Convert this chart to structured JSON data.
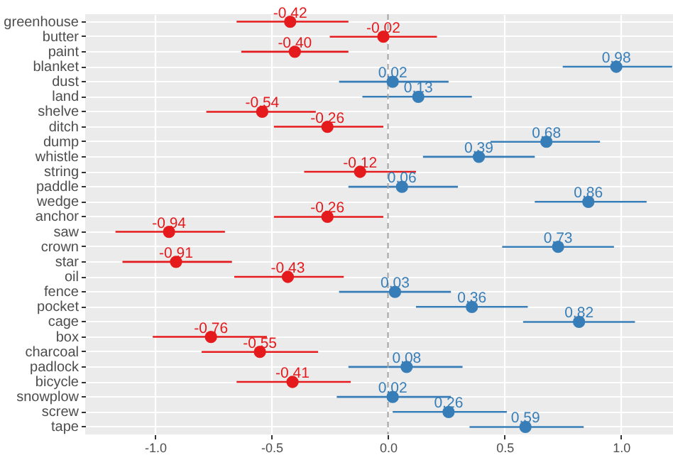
{
  "chart_data": {
    "type": "scatter",
    "orientation": "horizontal",
    "categories": [
      "greenhouse",
      "butter",
      "paint",
      "blanket",
      "dust",
      "land",
      "shelve",
      "ditch",
      "dump",
      "whistle",
      "string",
      "paddle",
      "wedge",
      "anchor",
      "saw",
      "crown",
      "star",
      "oil",
      "fence",
      "pocket",
      "cage",
      "box",
      "charcoal",
      "padlock",
      "bicycle",
      "snowplow",
      "screw",
      "tape"
    ],
    "values": [
      -0.42,
      -0.02,
      -0.4,
      0.98,
      0.02,
      0.13,
      -0.54,
      -0.26,
      0.68,
      0.39,
      -0.12,
      0.06,
      0.86,
      -0.26,
      -0.94,
      0.73,
      -0.91,
      -0.43,
      0.03,
      0.36,
      0.82,
      -0.76,
      -0.55,
      0.08,
      -0.41,
      0.02,
      0.26,
      0.59
    ],
    "errors": [
      [
        -0.65,
        -0.17
      ],
      [
        -0.25,
        0.21
      ],
      [
        -0.63,
        -0.17
      ],
      [
        0.75,
        1.22
      ],
      [
        -0.21,
        0.26
      ],
      [
        -0.11,
        0.36
      ],
      [
        -0.78,
        -0.31
      ],
      [
        -0.49,
        -0.02
      ],
      [
        0.44,
        0.91
      ],
      [
        0.15,
        0.63
      ],
      [
        -0.36,
        0.12
      ],
      [
        -0.17,
        0.3
      ],
      [
        0.63,
        1.11
      ],
      [
        -0.49,
        -0.02
      ],
      [
        -1.17,
        -0.7
      ],
      [
        0.49,
        0.97
      ],
      [
        -1.14,
        -0.67
      ],
      [
        -0.66,
        -0.19
      ],
      [
        -0.21,
        0.27
      ],
      [
        0.12,
        0.6
      ],
      [
        0.58,
        1.06
      ],
      [
        -1.01,
        -0.52
      ],
      [
        -0.8,
        -0.3
      ],
      [
        -0.17,
        0.32
      ],
      [
        -0.65,
        -0.16
      ],
      [
        -0.22,
        0.27
      ],
      [
        0.02,
        0.51
      ],
      [
        0.35,
        0.84
      ]
    ],
    "colors": [
      "#e41a1c",
      "#e41a1c",
      "#e41a1c",
      "#377eb8",
      "#377eb8",
      "#377eb8",
      "#e41a1c",
      "#e41a1c",
      "#377eb8",
      "#377eb8",
      "#e41a1c",
      "#377eb8",
      "#377eb8",
      "#e41a1c",
      "#e41a1c",
      "#377eb8",
      "#e41a1c",
      "#e41a1c",
      "#377eb8",
      "#377eb8",
      "#377eb8",
      "#e41a1c",
      "#e41a1c",
      "#377eb8",
      "#e41a1c",
      "#377eb8",
      "#377eb8",
      "#377eb8"
    ],
    "xlim": [
      -1.3,
      1.26
    ],
    "xticks": [
      {
        "value": -1,
        "label": "-1.0"
      },
      {
        "value": -0.5,
        "label": "-0.5"
      },
      {
        "value": 0,
        "label": "0.0"
      },
      {
        "value": 0.5,
        "label": "0.5"
      },
      {
        "value": 1,
        "label": "1.0"
      }
    ],
    "ref_lines": [
      {
        "axis": "x",
        "value": 0,
        "color": "#a0a0a0",
        "line_style": "dashed"
      }
    ],
    "value_labels": [
      "-0.42",
      "-0.02",
      "-0.40",
      "0.98",
      "0.02",
      "0.13",
      "-0.54",
      "-0.26",
      "0.68",
      "0.39",
      "-0.12",
      "0.06",
      "0.86",
      "-0.26",
      "-0.94",
      "0.73",
      "-0.91",
      "-0.43",
      "0.03",
      "0.36",
      "0.82",
      "-0.76",
      "-0.55",
      "0.08",
      "-0.41",
      "0.02",
      "0.26",
      "0.59"
    ],
    "grid": true,
    "marker": "circle"
  }
}
